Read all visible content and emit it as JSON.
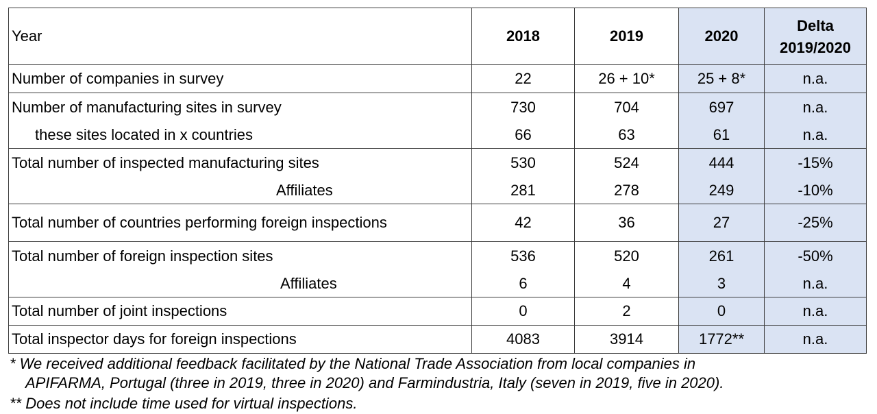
{
  "header": {
    "label": "Year",
    "c2018": "2018",
    "c2019": "2019",
    "c2020": "2020",
    "delta_line1": "Delta",
    "delta_line2": "2019/2020"
  },
  "rows": [
    {
      "label": "Number of companies in survey",
      "v2018": "22",
      "v2019": "26 + 10*",
      "v2020": "25 + 8*",
      "delta": "n.a."
    },
    {
      "label": "Number of manufacturing sites in survey",
      "v2018": "730",
      "v2019": "704",
      "v2020": "697",
      "delta": "n.a."
    },
    {
      "label": "these sites located in x countries",
      "v2018": "66",
      "v2019": "63",
      "v2020": "61",
      "delta": "n.a."
    },
    {
      "label": "Total number of inspected manufacturing sites",
      "v2018": "530",
      "v2019": "524",
      "v2020": "444",
      "delta": "-15%"
    },
    {
      "label": "Affiliates",
      "v2018": "281",
      "v2019": "278",
      "v2020": "249",
      "delta": "-10%"
    },
    {
      "label": "Total number of countries performing foreign inspections",
      "v2018": "42",
      "v2019": "36",
      "v2020": "27",
      "delta": "-25%"
    },
    {
      "label": "Total number of foreign inspection sites",
      "v2018": "536",
      "v2019": "520",
      "v2020": "261",
      "delta": "-50%"
    },
    {
      "label": "Affiliates",
      "v2018": "6",
      "v2019": "4",
      "v2020": "3",
      "delta": "n.a."
    },
    {
      "label": "Total number of joint inspections",
      "v2018": "0",
      "v2019": "2",
      "v2020": "0",
      "delta": "n.a."
    },
    {
      "label": "Total inspector days for foreign inspections",
      "v2018": "4083",
      "v2019": "3914",
      "v2020": "1772**",
      "delta": "n.a."
    }
  ],
  "footnotes": {
    "note1_line1": "* We received additional feedback facilitated by the National Trade Association from local companies in",
    "note1_line2": "APIFARMA, Portugal (three in 2019, three in 2020) and Farmindustria, Italy (seven in 2019, five in 2020).",
    "note2": "** Does not include time used for virtual inspections."
  },
  "colors": {
    "highlight_2020": "#dae3f3",
    "border": "#3a3a3a"
  }
}
